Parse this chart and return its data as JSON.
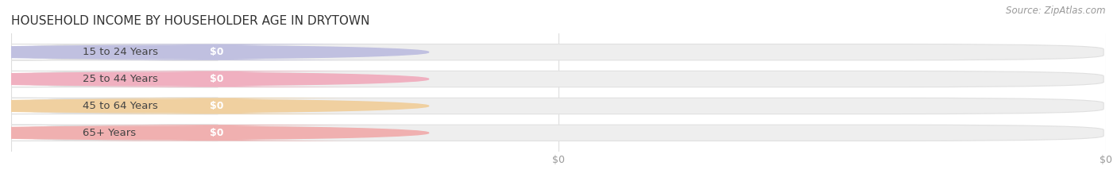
{
  "title": "HOUSEHOLD INCOME BY HOUSEHOLDER AGE IN DRYTOWN",
  "source_text": "Source: ZipAtlas.com",
  "categories": [
    "15 to 24 Years",
    "25 to 44 Years",
    "45 to 64 Years",
    "65+ Years"
  ],
  "values": [
    0,
    0,
    0,
    0
  ],
  "bar_colors": [
    "#9999cc",
    "#e87a9a",
    "#e8b070",
    "#e87a7a"
  ],
  "bar_colors_light": [
    "#c0c0e0",
    "#f0b0c0",
    "#f0d0a0",
    "#f0b0b0"
  ],
  "title_fontsize": 11,
  "label_fontsize": 9.5,
  "value_fontsize": 9,
  "tick_fontsize": 9,
  "background_color": "#ffffff",
  "bar_bg_color": "#eeeeee",
  "bar_bg_edge_color": "#e0e0e0",
  "white_label_bg": "#ffffff",
  "grid_color": "#dddddd"
}
